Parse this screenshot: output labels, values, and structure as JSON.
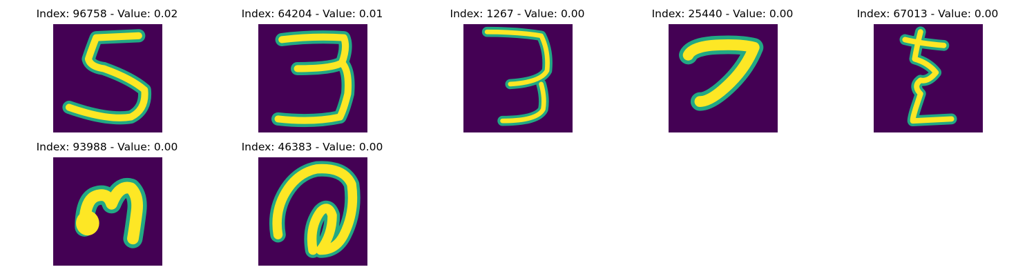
{
  "colors": {
    "background": "#440154",
    "stroke_outer": "#22a884",
    "stroke_inner": "#fde725"
  },
  "panels": [
    {
      "title": "Index: 96758 - Value: 0.02",
      "glyph": "digit-5"
    },
    {
      "title": "Index: 64204 - Value: 0.01",
      "glyph": "digit-3"
    },
    {
      "title": "Index: 1267 - Value: 0.00",
      "glyph": "digit-3-thin"
    },
    {
      "title": "Index: 25440 - Value: 0.00",
      "glyph": "digit-7"
    },
    {
      "title": "Index: 67013 - Value: 0.00",
      "glyph": "digit-z-like"
    },
    {
      "title": "Index: 93988 - Value: 0.00",
      "glyph": "digit-n-like"
    },
    {
      "title": "Index: 46383 - Value: 0.00",
      "glyph": "digit-loop"
    }
  ]
}
